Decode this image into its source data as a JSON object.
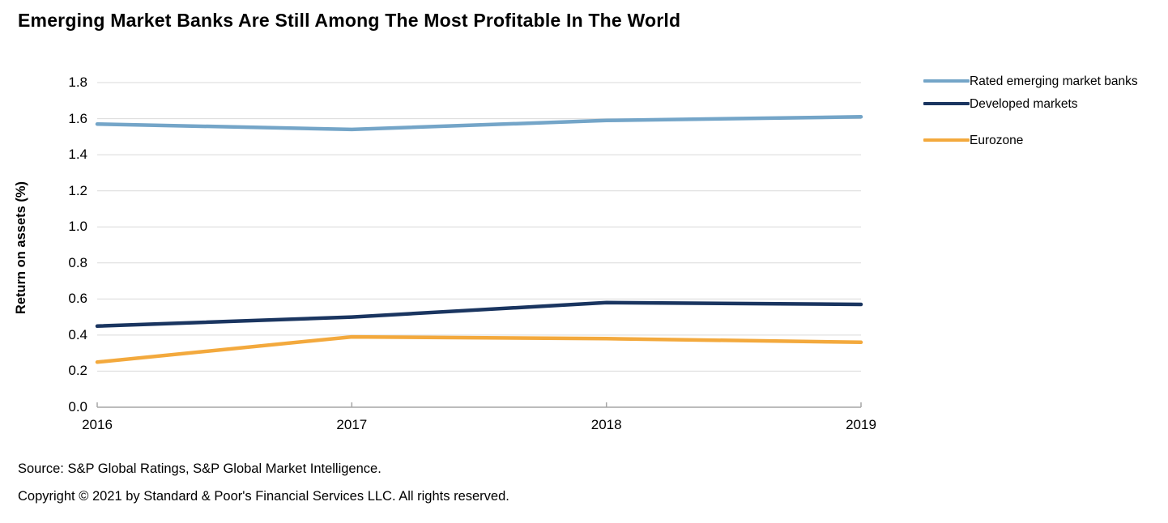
{
  "title": "Emerging Market Banks Are Still Among The Most Profitable In The World",
  "chart_data": {
    "type": "line",
    "categories": [
      "2016",
      "2017",
      "2018",
      "2019"
    ],
    "series": [
      {
        "name": "Rated emerging market banks",
        "values": [
          1.57,
          1.54,
          1.59,
          1.61
        ],
        "color": "#74A5C8"
      },
      {
        "name": "Developed markets",
        "values": [
          0.45,
          0.5,
          0.58,
          0.57
        ],
        "color": "#1A3560"
      },
      {
        "name": "Eurozone",
        "values": [
          0.25,
          0.39,
          0.38,
          0.36
        ],
        "color": "#F3A93D"
      }
    ],
    "title": "Emerging Market Banks Are Still Among The Most Profitable In The World",
    "xlabel": "",
    "ylabel": "Return on assets (%)",
    "ylim": [
      0.0,
      1.8
    ],
    "ytick_step": 0.2,
    "ytick_labels": [
      "0.0",
      "0.2",
      "0.4",
      "0.6",
      "0.8",
      "1.0",
      "1.2",
      "1.4",
      "1.6",
      "1.8"
    ],
    "grid": true,
    "legend_position": "right"
  },
  "colors": {
    "gridline": "#D9D9D9",
    "axis_line": "#A6A6A6",
    "text": "#000000"
  },
  "footer": {
    "source_line": "Source: S&P Global Ratings, S&P Global Market Intelligence.",
    "copyright_line": "Copyright © 2021 by Standard & Poor's Financial Services LLC. All rights reserved."
  }
}
